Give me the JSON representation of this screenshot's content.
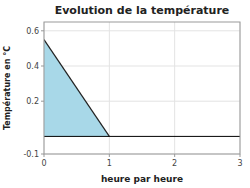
{
  "chart_data": {
    "type": "area",
    "title": "Evolution de la température",
    "xlabel": "heure par heure",
    "ylabel": "Température en °C",
    "x": [
      0,
      1
    ],
    "values": [
      0.55,
      0.0
    ],
    "color": "#a8d8e8",
    "xlim": [
      0,
      3
    ],
    "ylim": [
      -0.1,
      0.65
    ],
    "xticks": [
      0,
      1,
      2,
      3
    ],
    "yticks": [
      -0.1,
      0.2,
      0.4,
      0.6
    ],
    "grid": true
  }
}
